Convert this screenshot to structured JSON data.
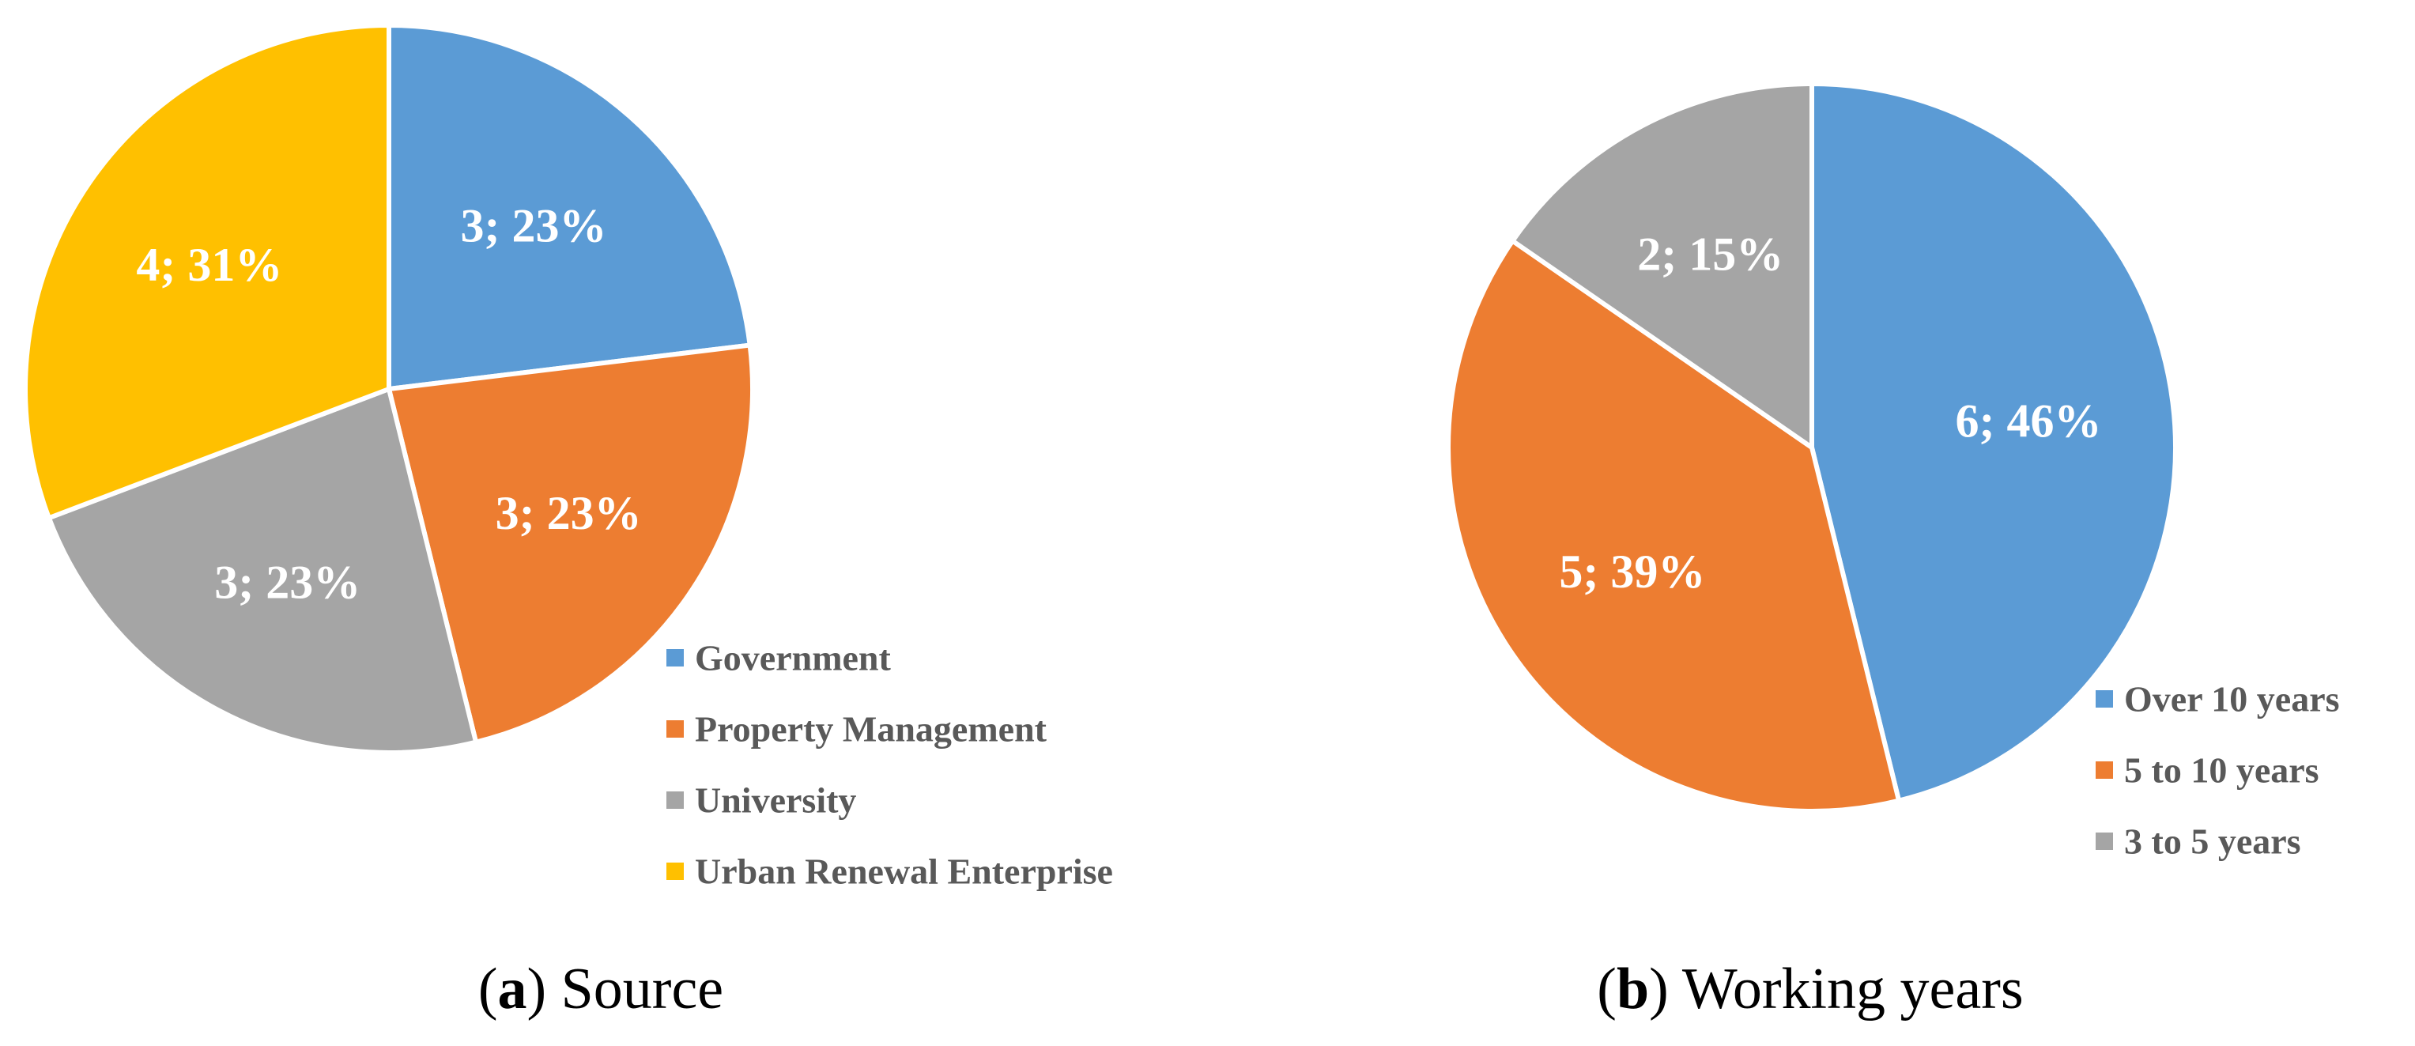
{
  "chart_data": [
    {
      "type": "pie",
      "caption_letter": "a",
      "caption_text": "Source",
      "legend_position": "bottom-right",
      "slices": [
        {
          "name": "Government",
          "value": 3,
          "percent": 23,
          "label": "3; 23%",
          "color": "#5B9BD5"
        },
        {
          "name": "Property Management",
          "value": 3,
          "percent": 23,
          "label": "3; 23%",
          "color": "#ED7D31"
        },
        {
          "name": "University",
          "value": 3,
          "percent": 23,
          "label": "3; 23%",
          "color": "#A5A5A5"
        },
        {
          "name": "Urban Renewal Enterprise",
          "value": 4,
          "percent": 31,
          "label": "4; 31%",
          "color": "#FFC000"
        }
      ]
    },
    {
      "type": "pie",
      "caption_letter": "b",
      "caption_text": "Working years",
      "legend_position": "bottom-right",
      "slices": [
        {
          "name": "Over 10 years",
          "value": 6,
          "percent": 46,
          "label": "6; 46%",
          "color": "#5B9BD5"
        },
        {
          "name": "5 to 10 years",
          "value": 5,
          "percent": 39,
          "label": "5; 39%",
          "color": "#ED7D31"
        },
        {
          "name": "3 to 5 years",
          "value": 2,
          "percent": 15,
          "label": "2; 15%",
          "color": "#A5A5A5"
        }
      ]
    }
  ]
}
